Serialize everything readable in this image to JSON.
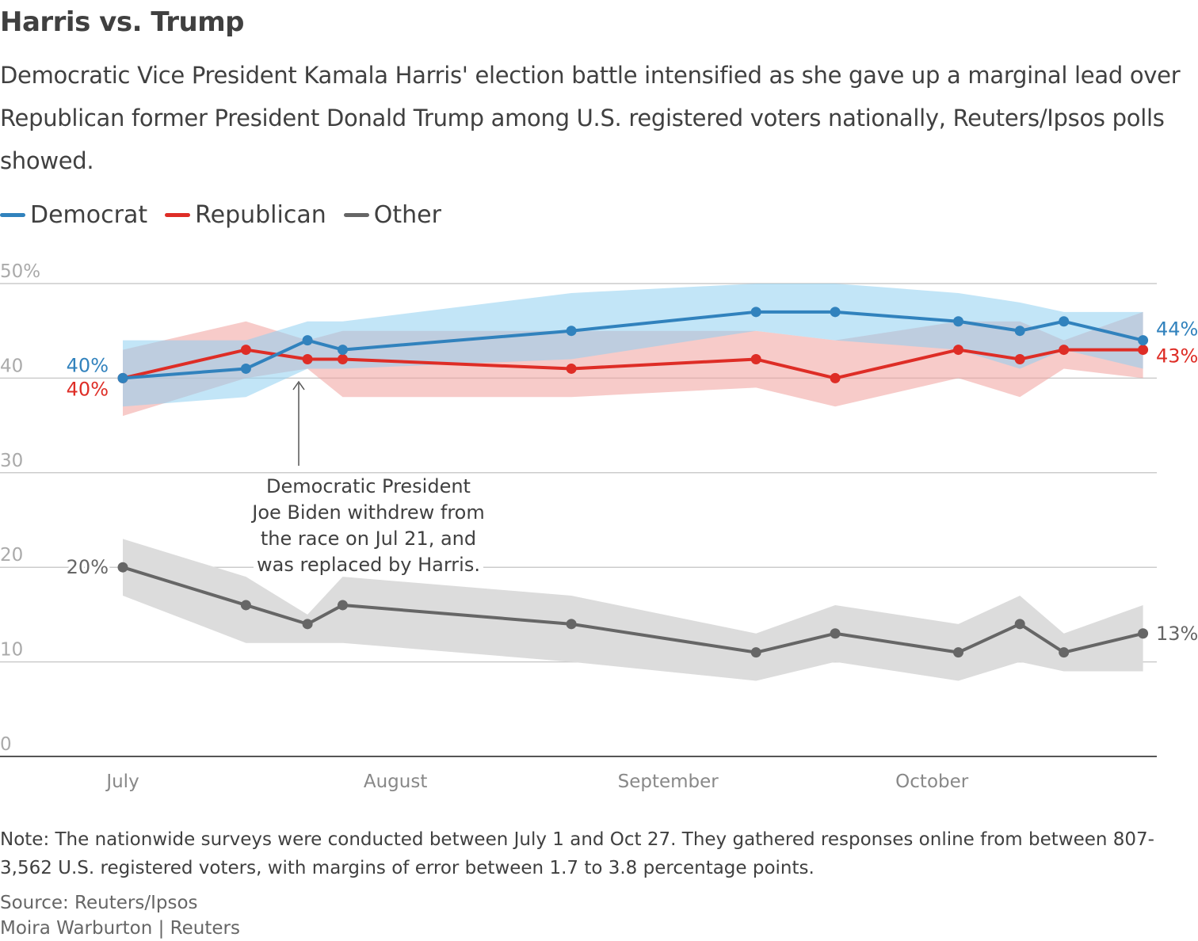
{
  "chart_data": {
    "type": "line",
    "title": "Harris vs. Trump",
    "subtitle": "Democratic Vice President Kamala Harris' election battle intensified as she gave up a marginal lead over Republican former President Donald Trump among U.S. registered voters nationally, Reuters/Ipsos polls showed.",
    "legend_position": "top-left",
    "ylim": [
      0,
      50
    ],
    "y_ticks": [
      "0",
      "10",
      "20",
      "30",
      "40",
      "50%"
    ],
    "x_ticks": [
      {
        "label": "July",
        "date": "2024-07-01"
      },
      {
        "label": "August",
        "date": "2024-08-01"
      },
      {
        "label": "September",
        "date": "2024-09-01"
      },
      {
        "label": "October",
        "date": "2024-10-01"
      }
    ],
    "grid": true,
    "x": [
      "2024-07-01",
      "2024-07-15",
      "2024-07-22",
      "2024-07-26",
      "2024-08-21",
      "2024-09-11",
      "2024-09-20",
      "2024-10-04",
      "2024-10-11",
      "2024-10-16",
      "2024-10-25"
    ],
    "series": [
      {
        "name": "Democrat",
        "color": "#3182bd",
        "band_color": "#8fd0f0",
        "values": [
          40,
          41,
          44,
          43,
          45,
          47,
          47,
          46,
          45,
          46,
          44
        ],
        "upper": [
          44,
          44,
          46,
          46,
          49,
          50,
          50,
          49,
          48,
          47,
          47
        ],
        "lower": [
          37,
          38,
          41,
          41,
          42,
          45,
          44,
          43,
          41,
          43,
          41
        ],
        "start_label": "40%",
        "end_label": "44%"
      },
      {
        "name": "Republican",
        "color": "#de2d26",
        "band_color": "#f0a09c",
        "values": [
          40,
          43,
          42,
          42,
          41,
          42,
          40,
          43,
          42,
          43,
          43
        ],
        "upper": [
          43,
          46,
          44,
          45,
          45,
          45,
          44,
          46,
          46,
          44,
          47
        ],
        "lower": [
          36,
          40,
          41,
          38,
          38,
          39,
          37,
          40,
          38,
          41,
          40
        ],
        "start_label": "40%",
        "end_label": "43%"
      },
      {
        "name": "Other",
        "color": "#666666",
        "band_color": "#dcdcdc",
        "values": [
          20,
          16,
          14,
          16,
          14,
          11,
          13,
          11,
          14,
          11,
          13
        ],
        "upper": [
          23,
          19,
          15,
          19,
          17,
          13,
          16,
          14,
          17,
          13,
          16
        ],
        "lower": [
          17,
          12,
          12,
          12,
          10,
          8,
          10,
          8,
          10,
          9,
          9
        ],
        "start_label": "20%",
        "end_label": "13%"
      }
    ],
    "annotation": {
      "date": "2024-07-21",
      "lines": [
        "Democratic President",
        "Joe Biden withdrew from",
        "the race on Jul 21, and",
        "was replaced by Harris."
      ]
    }
  },
  "note": "Note: The nationwide surveys were conducted between July 1 and Oct 27. They gathered responses online from between 807-3,562 U.S. registered voters, with margins of error between 1.7 to 3.8 percentage points.",
  "source": "Source: Reuters/Ipsos",
  "credit": "Moira Warburton | Reuters"
}
